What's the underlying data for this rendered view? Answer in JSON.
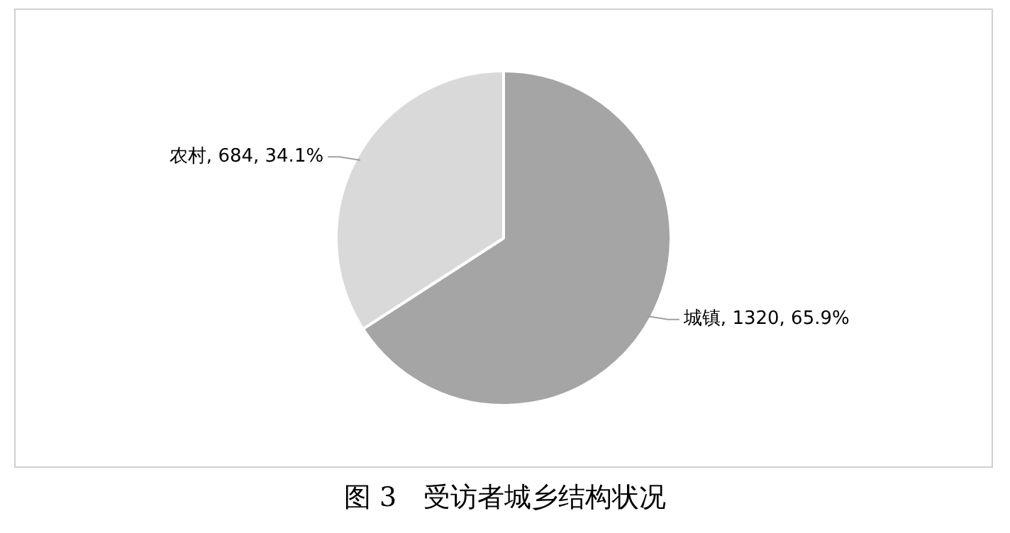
{
  "chart_data": {
    "type": "pie",
    "title": "图 3　受访者城乡结构状况",
    "categories": [
      "城镇",
      "农村"
    ],
    "values": [
      1320,
      684
    ],
    "colors": [
      "#a5a5a5",
      "#d9d9d9"
    ],
    "value_labels": [
      "1320, 65.9%",
      "684, 34.1%"
    ],
    "legend": false
  }
}
